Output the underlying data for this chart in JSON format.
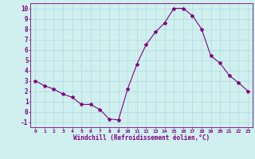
{
  "x": [
    0,
    1,
    2,
    3,
    4,
    5,
    6,
    7,
    8,
    9,
    10,
    11,
    12,
    13,
    14,
    15,
    16,
    17,
    18,
    19,
    20,
    21,
    22,
    23
  ],
  "y": [
    3.0,
    2.5,
    2.2,
    1.7,
    1.4,
    0.7,
    0.7,
    0.2,
    -0.7,
    -0.8,
    2.2,
    4.6,
    6.5,
    7.7,
    8.6,
    10.0,
    10.0,
    9.3,
    8.0,
    5.4,
    4.7,
    3.5,
    2.8,
    2.0
  ],
  "line_color": "#800080",
  "marker": "*",
  "marker_color": "#800080",
  "bg_color": "#d0f0f0",
  "grid_color": "#b0d8d8",
  "axis_color": "#800080",
  "xlabel": "Windchill (Refroidissement éolien,°C)",
  "xlim": [
    -0.5,
    23.5
  ],
  "ylim": [
    -1.5,
    10.5
  ],
  "xticks": [
    0,
    1,
    2,
    3,
    4,
    5,
    6,
    7,
    8,
    9,
    10,
    11,
    12,
    13,
    14,
    15,
    16,
    17,
    18,
    19,
    20,
    21,
    22,
    23
  ],
  "yticks": [
    -1,
    0,
    1,
    2,
    3,
    4,
    5,
    6,
    7,
    8,
    9,
    10
  ]
}
